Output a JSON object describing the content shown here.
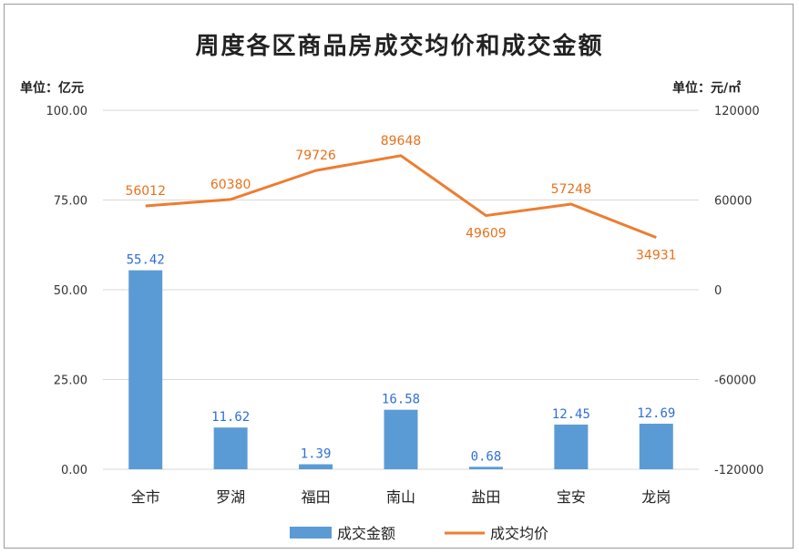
{
  "chart_data": {
    "type": "bar+line",
    "title": "周度各区商品房成交均价和成交金额",
    "unit_left": "单位：亿元",
    "unit_right": "单位：元/㎡",
    "categories": [
      "全市",
      "罗湖",
      "福田",
      "南山",
      "盐田",
      "宝安",
      "龙岗"
    ],
    "series": [
      {
        "name": "成交金额",
        "type": "bar",
        "axis": "left",
        "values": [
          55.42,
          11.62,
          1.39,
          16.58,
          0.68,
          12.45,
          12.69
        ],
        "labels": [
          "55.42",
          "11.62",
          "1.39",
          "16.58",
          "0.68",
          "12.45",
          "12.69"
        ]
      },
      {
        "name": "成交均价",
        "type": "line",
        "axis": "right",
        "values": [
          56012,
          60380,
          79726,
          89648,
          49609,
          57248,
          34931
        ],
        "labels": [
          "56012",
          "60380",
          "79726",
          "89648",
          "49609",
          "57248",
          "34931"
        ]
      }
    ],
    "y_left": {
      "lim": [
        0,
        100
      ],
      "ticks": [
        "0.00",
        "25.00",
        "50.00",
        "75.00",
        "100.00"
      ],
      "values": [
        0,
        25,
        50,
        75,
        100
      ]
    },
    "y_right": {
      "lim": [
        -120000,
        120000
      ],
      "ticks": [
        "-120000",
        "-60000",
        "0",
        "60000",
        "120000"
      ],
      "values": [
        -120000,
        -60000,
        0,
        60000,
        120000
      ]
    },
    "grid": true,
    "legend": "bottom",
    "colors": {
      "bar": "#5b9bd5",
      "line": "#ed7d31",
      "bar_label": "#2f6fd6",
      "line_label": "#e8711a"
    }
  }
}
